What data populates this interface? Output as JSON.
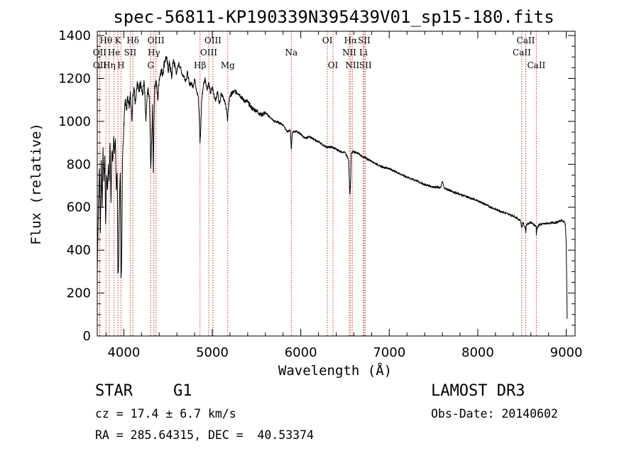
{
  "chart_data": {
    "type": "line",
    "title": "spec-56811-KP190339N395439V01_sp15-180.fits",
    "xlabel": "Wavelength (Å)",
    "ylabel": "Flux (relative)",
    "xlim": [
      3700,
      9100
    ],
    "ylim": [
      0,
      1420
    ],
    "x_ticks": [
      4000,
      5000,
      6000,
      7000,
      8000,
      9000
    ],
    "y_ticks": [
      0,
      200,
      400,
      600,
      800,
      1000,
      1200,
      1400
    ],
    "x_tick_labels": [
      "4000",
      "5000",
      "6000",
      "7000",
      "8000",
      "9000"
    ],
    "y_tick_labels": [
      "0",
      "200",
      "400",
      "600",
      "800",
      "1000",
      "1200",
      "1400"
    ],
    "line_color": "#000000",
    "marker_color": "#c0392b",
    "series": [
      {
        "name": "flux",
        "x": [
          3700,
          3712,
          3725,
          3735,
          3745,
          3755,
          3765,
          3775,
          3785,
          3795,
          3805,
          3815,
          3825,
          3835,
          3845,
          3855,
          3865,
          3875,
          3885,
          3895,
          3905,
          3915,
          3925,
          3933,
          3940,
          3950,
          3960,
          3968,
          3975,
          3985,
          3995,
          4005,
          4015,
          4030,
          4045,
          4060,
          4075,
          4090,
          4102,
          4115,
          4130,
          4150,
          4170,
          4190,
          4210,
          4230,
          4250,
          4270,
          4290,
          4305,
          4315,
          4325,
          4333,
          4340,
          4350,
          4365,
          4385,
          4400,
          4420,
          4440,
          4460,
          4480,
          4500,
          4520,
          4540,
          4560,
          4580,
          4600,
          4620,
          4640,
          4660,
          4680,
          4700,
          4720,
          4740,
          4760,
          4780,
          4800,
          4820,
          4840,
          4855,
          4861,
          4868,
          4880,
          4900,
          4920,
          4940,
          4960,
          4980,
          5000,
          5020,
          5040,
          5060,
          5080,
          5100,
          5120,
          5140,
          5160,
          5172,
          5185,
          5200,
          5250,
          5300,
          5350,
          5400,
          5450,
          5500,
          5550,
          5600,
          5650,
          5700,
          5750,
          5800,
          5850,
          5880,
          5893,
          5905,
          5950,
          6000,
          6050,
          6100,
          6150,
          6200,
          6250,
          6300,
          6350,
          6400,
          6450,
          6500,
          6540,
          6555,
          6563,
          6570,
          6590,
          6650,
          6700,
          6800,
          6900,
          7000,
          7100,
          7200,
          7300,
          7400,
          7500,
          7580,
          7600,
          7620,
          7700,
          7800,
          7900,
          8000,
          8100,
          8200,
          8300,
          8400,
          8480,
          8498,
          8510,
          8540,
          8542,
          8550,
          8600,
          8660,
          8662,
          8670,
          8700,
          8800,
          8900,
          8950,
          8980,
          8990,
          9000,
          9010
        ],
        "y": [
          300,
          600,
          780,
          480,
          820,
          600,
          880,
          720,
          840,
          520,
          750,
          680,
          800,
          720,
          900,
          620,
          860,
          820,
          930,
          850,
          920,
          680,
          760,
          290,
          320,
          600,
          760,
          270,
          340,
          820,
          920,
          1030,
          1100,
          1050,
          1120,
          1060,
          1140,
          1000,
          1120,
          1160,
          1090,
          1180,
          1140,
          1190,
          1120,
          1180,
          1000,
          1150,
          1100,
          780,
          900,
          1080,
          760,
          1000,
          1170,
          1190,
          1100,
          1200,
          1240,
          1220,
          1280,
          1300,
          1240,
          1270,
          1200,
          1290,
          1250,
          1230,
          1270,
          1250,
          1220,
          1210,
          1190,
          1230,
          1170,
          1180,
          1160,
          1200,
          1150,
          1120,
          1000,
          900,
          950,
          1100,
          1170,
          1200,
          1150,
          1180,
          1130,
          1160,
          1120,
          1100,
          1140,
          1080,
          1130,
          1120,
          1090,
          1060,
          1000,
          1080,
          1120,
          1140,
          1130,
          1100,
          1090,
          1060,
          1050,
          1030,
          1040,
          1020,
          1000,
          995,
          985,
          950,
          960,
          870,
          950,
          955,
          940,
          920,
          930,
          915,
          905,
          890,
          880,
          880,
          870,
          860,
          855,
          820,
          660,
          720,
          850,
          860,
          850,
          835,
          815,
          790,
          780,
          760,
          740,
          725,
          705,
          695,
          690,
          720,
          690,
          675,
          660,
          645,
          630,
          610,
          590,
          575,
          560,
          540,
          505,
          530,
          500,
          480,
          520,
          530,
          510,
          470,
          505,
          520,
          525,
          530,
          540,
          530,
          520,
          430,
          80
        ]
      }
    ],
    "line_markers": [
      {
        "label": "Hθ",
        "wavelength": 3798,
        "row": 1
      },
      {
        "label": "OII",
        "wavelength": 3727,
        "row": 2
      },
      {
        "label": "OII",
        "wavelength": 3729,
        "row": 3
      },
      {
        "label": "He",
        "wavelength": 3889,
        "row": 2
      },
      {
        "label": "Hη",
        "wavelength": 3835,
        "row": 3
      },
      {
        "label": "K",
        "wavelength": 3933,
        "row": 1
      },
      {
        "label": "H",
        "wavelength": 3968,
        "row": 3
      },
      {
        "label": "SII",
        "wavelength": 4072,
        "row": 2
      },
      {
        "label": "Hδ",
        "wavelength": 4102,
        "row": 1
      },
      {
        "label": "OIII",
        "wavelength": 4363,
        "row": 1
      },
      {
        "label": "Hγ",
        "wavelength": 4340,
        "row": 2
      },
      {
        "label": "G",
        "wavelength": 4304,
        "row": 3
      },
      {
        "label": "Hβ",
        "wavelength": 4861,
        "row": 3
      },
      {
        "label": "OIII",
        "wavelength": 4959,
        "row": 2
      },
      {
        "label": "OIII",
        "wavelength": 5007,
        "row": 1
      },
      {
        "label": "Mg",
        "wavelength": 5175,
        "row": 3
      },
      {
        "label": "Na",
        "wavelength": 5893,
        "row": 2
      },
      {
        "label": "OI",
        "wavelength": 6300,
        "row": 1
      },
      {
        "label": "OI",
        "wavelength": 6364,
        "row": 3
      },
      {
        "label": "Hα",
        "wavelength": 6563,
        "row": 1
      },
      {
        "label": "NII",
        "wavelength": 6548,
        "row": 2
      },
      {
        "label": "NII",
        "wavelength": 6583,
        "row": 3
      },
      {
        "label": "SII",
        "wavelength": 6716,
        "row": 1
      },
      {
        "label": "Li",
        "wavelength": 6708,
        "row": 2
      },
      {
        "label": "SII",
        "wavelength": 6731,
        "row": 3
      },
      {
        "label": "CaII",
        "wavelength": 8542,
        "row": 1
      },
      {
        "label": "CaII",
        "wavelength": 8498,
        "row": 2
      },
      {
        "label": "CaII",
        "wavelength": 8662,
        "row": 3
      }
    ]
  },
  "info": {
    "class": "STAR",
    "subclass": "G1",
    "survey": "LAMOST DR3",
    "cz_line": "cz = 17.4 ± 6.7 km/s",
    "obs_date_line": "Obs-Date: 20140602",
    "coords_line": "RA = 285.64315, DEC =  40.53374"
  }
}
